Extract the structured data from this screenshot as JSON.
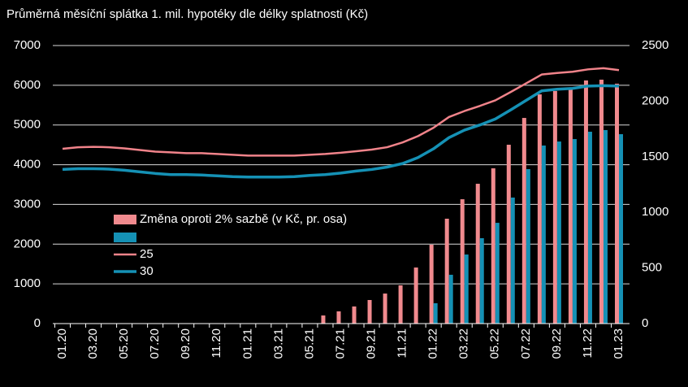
{
  "chart_data": {
    "type": "bar-line",
    "title": "Průměrná měsíční splátka 1. mil. hypotéky dle délky splatnosti (Kč)",
    "categories": [
      "01.20",
      null,
      "03.20",
      null,
      "05.20",
      null,
      "07.20",
      null,
      "09.20",
      null,
      "11.20",
      null,
      "01.21",
      null,
      "03.21",
      null,
      "05.21",
      null,
      "07.21",
      null,
      "09.21",
      null,
      "11.21",
      null,
      "01.22",
      null,
      "03.22",
      null,
      "05.22",
      null,
      "07.22",
      null,
      "09.22",
      null,
      "11.22",
      null,
      "01.23"
    ],
    "series": [
      {
        "name": "Změna oproti 2% sazbě (v Kč, pr. osa)",
        "type": "bar",
        "axis": "y2",
        "color": "#f08a8e",
        "values": [
          null,
          null,
          null,
          null,
          null,
          null,
          null,
          null,
          null,
          null,
          null,
          null,
          null,
          null,
          null,
          null,
          null,
          73,
          110,
          154,
          212,
          270,
          344,
          504,
          709,
          943,
          1118,
          1257,
          1396,
          1608,
          1849,
          2061,
          2091,
          2105,
          2186,
          2193,
          2157
        ]
      },
      {
        "type": "bar",
        "axis": "y2",
        "color": "#1591b5",
        "values": [
          null,
          null,
          null,
          null,
          null,
          null,
          null,
          null,
          null,
          null,
          null,
          null,
          null,
          null,
          null,
          null,
          null,
          null,
          null,
          null,
          null,
          null,
          null,
          null,
          183,
          439,
          621,
          768,
          906,
          1133,
          1389,
          1601,
          1637,
          1659,
          1725,
          1740,
          1703
        ]
      },
      {
        "name": "25",
        "type": "line",
        "color": "#f0838a",
        "values": [
          4400,
          4440,
          4450,
          4440,
          4410,
          4370,
          4330,
          4310,
          4290,
          4290,
          4270,
          4250,
          4230,
          4230,
          4230,
          4230,
          4250,
          4270,
          4300,
          4340,
          4380,
          4440,
          4560,
          4720,
          4930,
          5200,
          5350,
          5480,
          5620,
          5830,
          6050,
          6270,
          6310,
          6340,
          6400,
          6430,
          6380
        ]
      },
      {
        "name": "30",
        "type": "line",
        "color": "#1591b5",
        "values": [
          3880,
          3900,
          3900,
          3890,
          3860,
          3820,
          3780,
          3750,
          3750,
          3740,
          3720,
          3700,
          3690,
          3690,
          3690,
          3700,
          3730,
          3750,
          3790,
          3840,
          3880,
          3940,
          4030,
          4180,
          4400,
          4680,
          4870,
          5000,
          5150,
          5380,
          5620,
          5860,
          5900,
          5920,
          5980,
          5990,
          5980
        ]
      }
    ],
    "ylim": [
      0,
      7000
    ],
    "yticks": [
      0,
      1000,
      2000,
      3000,
      4000,
      5000,
      6000,
      7000
    ],
    "y2lim": [
      0,
      2500
    ],
    "y2ticks": [
      0,
      500,
      1000,
      1500,
      2000,
      2500
    ],
    "grid": true
  }
}
